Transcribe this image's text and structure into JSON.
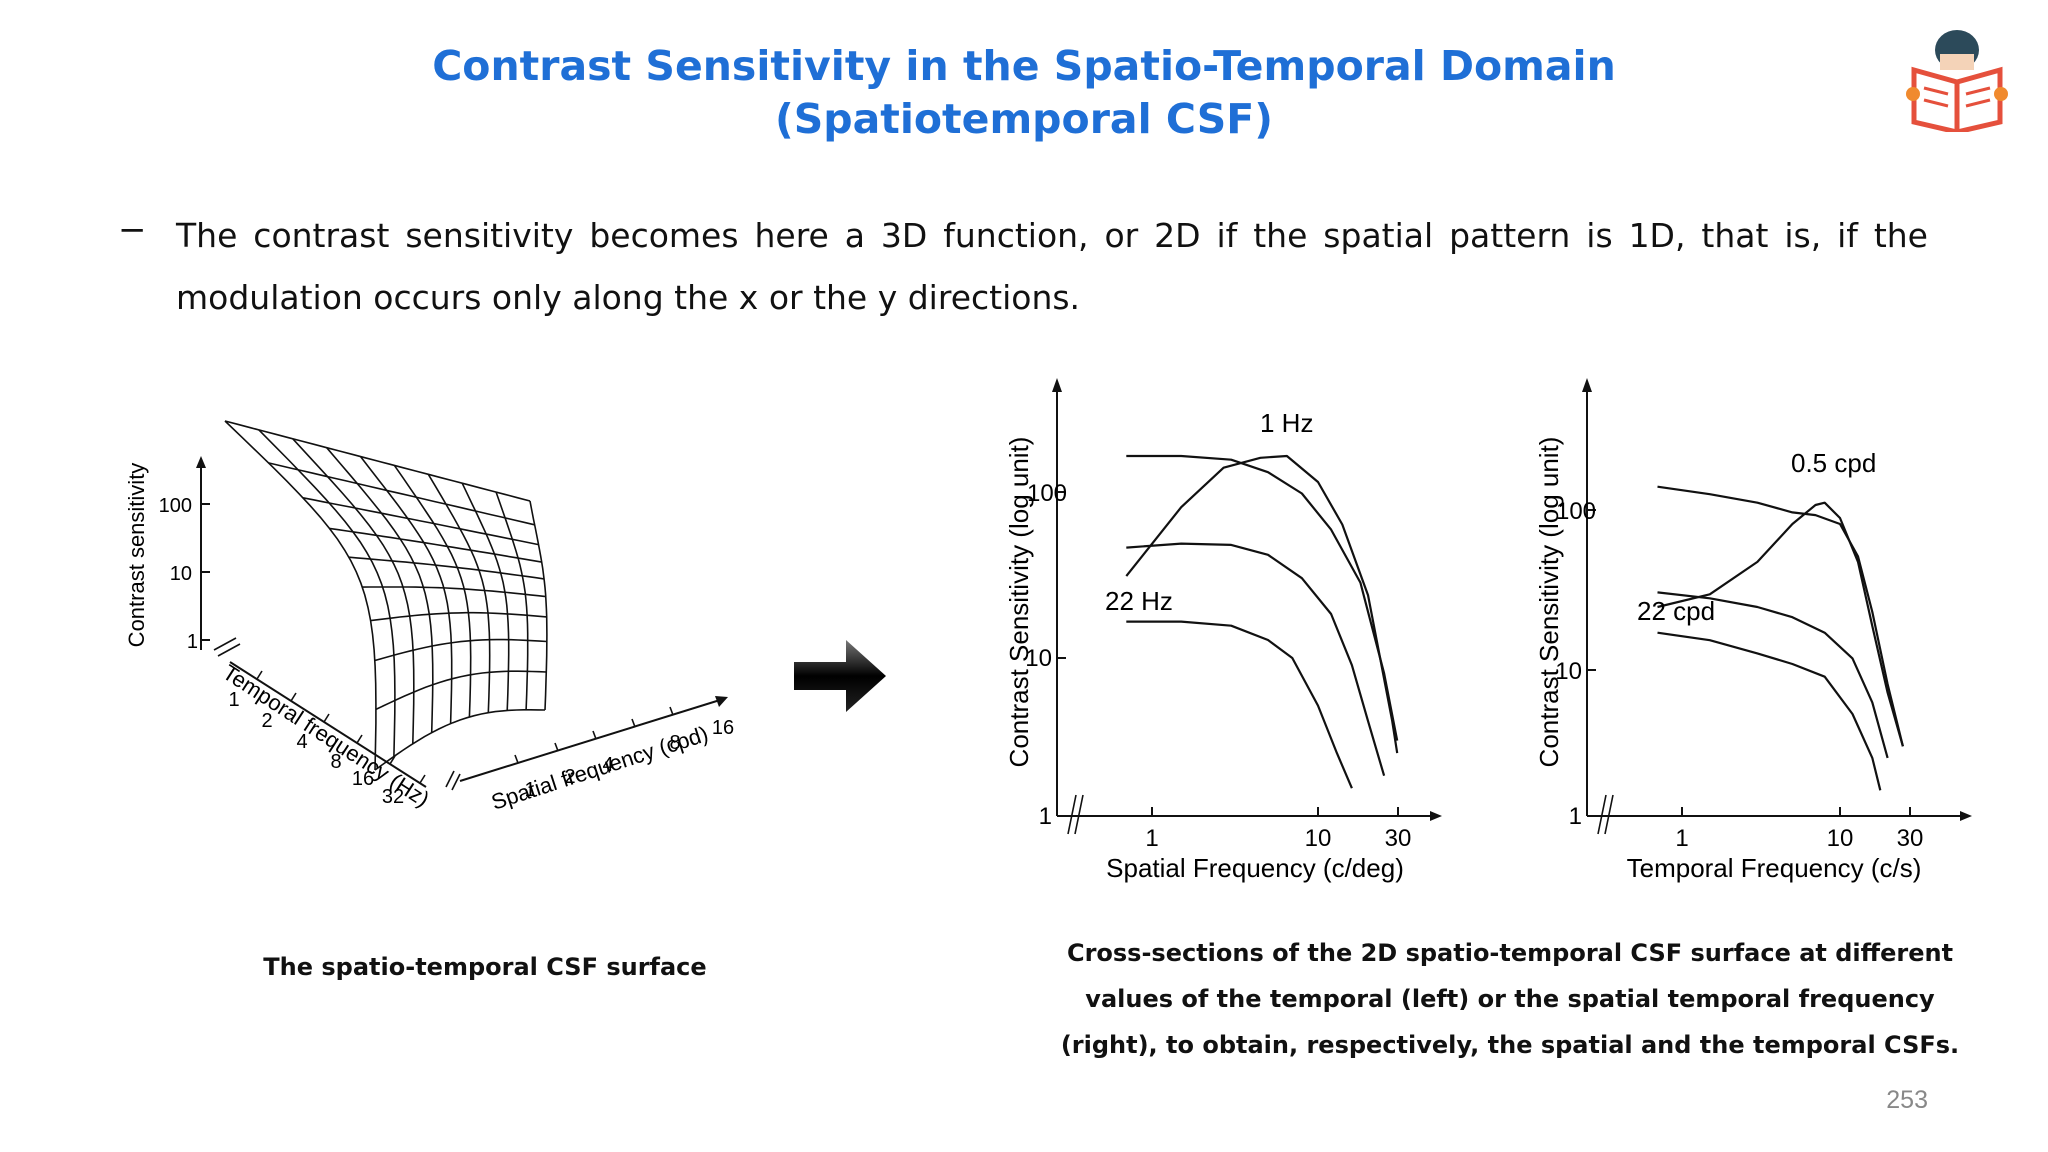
{
  "slide": {
    "title_line1": "Contrast Sensitivity in the Spatio-Temporal Domain",
    "title_line2": "(Spatiotemporal CSF)",
    "bullet_marker": "−",
    "bullet_text": "The contrast sensitivity becomes here a 3D function, or 2D if the spatial pattern is 1D, that is, if the modulation occurs only along the x or the y directions.",
    "page_number": "253",
    "colors": {
      "title": "#1f6fd6",
      "logo_orange": "#f08a2e",
      "logo_red": "#e5503c",
      "logo_hair": "#2c4a5a"
    }
  },
  "surface3d": {
    "z_label": "Contrast sensitivity",
    "z_ticks": [
      "100",
      "10",
      "1"
    ],
    "temporal_label": "Temporal frequency (Hz)",
    "temporal_ticks": [
      "1",
      "2",
      "4",
      "8",
      "16",
      "32"
    ],
    "spatial_label": "Spatial frequency (cpd)",
    "spatial_ticks": [
      "1",
      "2",
      "4",
      "8",
      "16"
    ],
    "caption": "The spatio-temporal CSF surface"
  },
  "arrow_icon": "right-arrow-icon",
  "cross_sections_caption": {
    "line1": "Cross-sections of the 2D spatio-temporal CSF surface at different",
    "line2": "values of the temporal (left) or the spatial temporal frequency",
    "line3": "(right), to obtain, respectively, the spatial and the temporal CSFs."
  },
  "chart_data": [
    {
      "type": "line",
      "xlabel": "Spatial Frequency (c/deg)",
      "ylabel": "Contrast Sensitivity (log unit)",
      "x_scale": "log",
      "y_scale": "log",
      "x_ticks": [
        "1",
        "10",
        "30"
      ],
      "y_ticks": [
        "1",
        "10",
        "100"
      ],
      "xlim": [
        0.5,
        40
      ],
      "ylim": [
        1,
        400
      ],
      "annotations": [
        "1 Hz",
        "22 Hz"
      ],
      "series": [
        {
          "name": "1 Hz",
          "x": [
            0.7,
            1.5,
            2.7,
            4.5,
            6.5,
            10,
            14,
            20,
            28,
            30
          ],
          "y": [
            33,
            90,
            160,
            185,
            190,
            130,
            70,
            25,
            4,
            2.5
          ]
        },
        {
          "x": [
            0.7,
            1.5,
            3,
            5,
            8,
            12,
            18,
            25,
            30
          ],
          "y": [
            190,
            190,
            180,
            150,
            110,
            65,
            30,
            8,
            3
          ]
        },
        {
          "x": [
            0.7,
            1.5,
            3,
            5,
            8,
            12,
            16,
            20,
            25
          ],
          "y": [
            50,
            53,
            52,
            45,
            32,
            19,
            9,
            4,
            1.8
          ]
        },
        {
          "name": "22 Hz",
          "x": [
            0.7,
            1.5,
            3,
            5,
            7,
            10,
            13,
            16
          ],
          "y": [
            17,
            17,
            16,
            13,
            10,
            5,
            2.5,
            1.5
          ]
        }
      ]
    },
    {
      "type": "line",
      "xlabel": "Temporal Frequency (c/s)",
      "ylabel": "Contrast Sensitivity (log unit)",
      "x_scale": "log",
      "y_scale": "log",
      "x_ticks": [
        "1",
        "10",
        "30"
      ],
      "y_ticks": [
        "1",
        "10",
        "100"
      ],
      "xlim": [
        0.5,
        40
      ],
      "ylim": [
        1,
        300
      ],
      "annotations": [
        "0.5 cpd",
        "22 cpd"
      ],
      "series": [
        {
          "x": [
            0.7,
            1.5,
            3,
            5,
            7,
            10,
            13,
            16,
            20,
            25
          ],
          "y": [
            180,
            160,
            140,
            120,
            115,
            100,
            60,
            25,
            8,
            3
          ]
        },
        {
          "name": "0.5 cpd",
          "x": [
            0.7,
            1.5,
            3,
            5,
            7,
            8,
            10,
            13,
            16,
            20,
            25
          ],
          "y": [
            27,
            33,
            55,
            100,
            135,
            140,
            110,
            55,
            20,
            7,
            3
          ]
        },
        {
          "x": [
            0.7,
            1.5,
            3,
            5,
            8,
            12,
            16,
            20
          ],
          "y": [
            34,
            31,
            27,
            23,
            18,
            12,
            6,
            2.5
          ]
        },
        {
          "name": "22 cpd",
          "x": [
            0.7,
            1.5,
            3,
            5,
            8,
            12,
            16,
            18
          ],
          "y": [
            18,
            16,
            13,
            11,
            9,
            5,
            2.5,
            1.5
          ]
        }
      ]
    }
  ]
}
